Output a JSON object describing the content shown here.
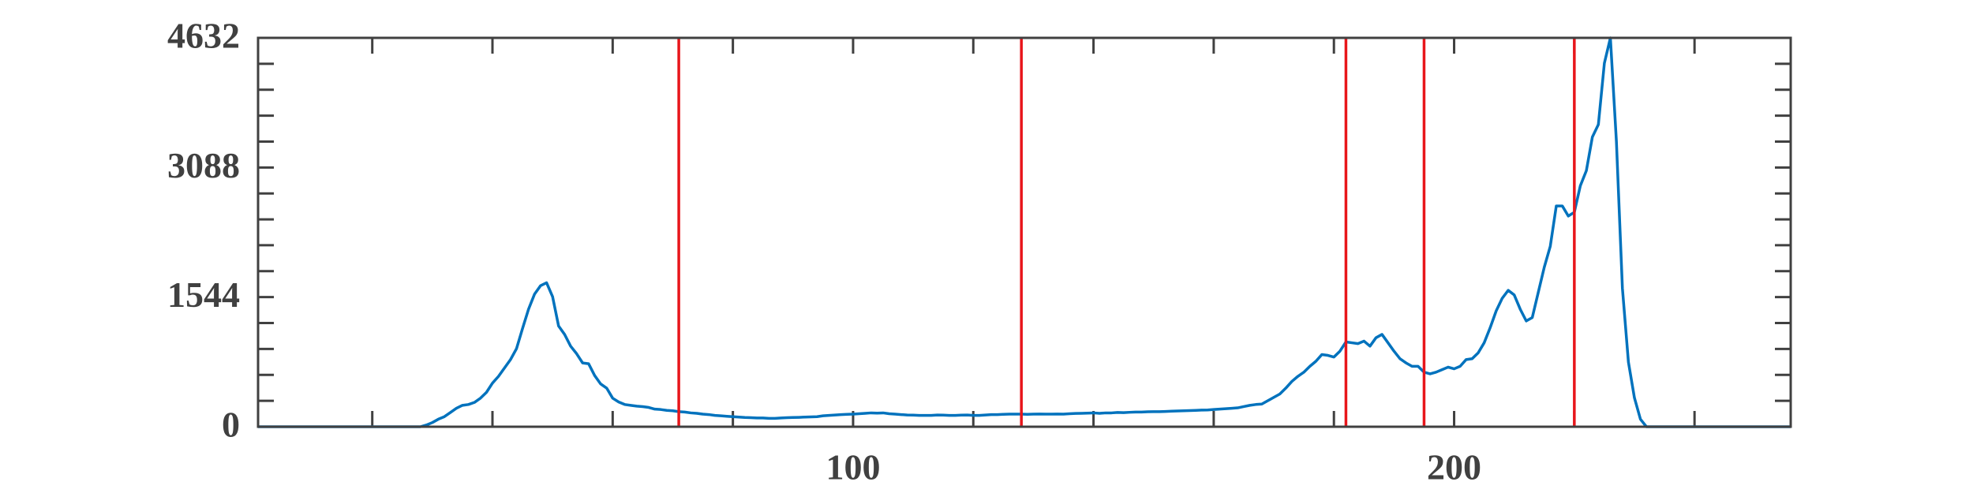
{
  "chart_data": {
    "type": "line",
    "x": [
      1,
      2,
      3,
      4,
      5,
      6,
      7,
      8,
      9,
      10,
      11,
      12,
      13,
      14,
      15,
      16,
      17,
      18,
      19,
      20,
      21,
      22,
      23,
      24,
      25,
      26,
      27,
      28,
      29,
      30,
      31,
      32,
      33,
      34,
      35,
      36,
      37,
      38,
      39,
      40,
      41,
      42,
      43,
      44,
      45,
      46,
      47,
      48,
      49,
      50,
      51,
      52,
      53,
      54,
      55,
      56,
      57,
      58,
      59,
      60,
      61,
      62,
      63,
      64,
      65,
      66,
      67,
      68,
      69,
      70,
      71,
      72,
      73,
      74,
      75,
      76,
      77,
      78,
      79,
      80,
      81,
      82,
      83,
      84,
      85,
      86,
      87,
      88,
      89,
      90,
      91,
      92,
      93,
      94,
      95,
      96,
      97,
      98,
      99,
      100,
      101,
      102,
      103,
      104,
      105,
      106,
      107,
      108,
      109,
      110,
      111,
      112,
      113,
      114,
      115,
      116,
      117,
      118,
      119,
      120,
      121,
      122,
      123,
      124,
      125,
      126,
      127,
      128,
      129,
      130,
      131,
      132,
      133,
      134,
      135,
      136,
      137,
      138,
      139,
      140,
      141,
      142,
      143,
      144,
      145,
      146,
      147,
      148,
      149,
      150,
      151,
      152,
      153,
      154,
      155,
      156,
      157,
      158,
      159,
      160,
      161,
      162,
      163,
      164,
      165,
      166,
      167,
      168,
      169,
      170,
      171,
      172,
      173,
      174,
      175,
      176,
      177,
      178,
      179,
      180,
      181,
      182,
      183,
      184,
      185,
      186,
      187,
      188,
      189,
      190,
      191,
      192,
      193,
      194,
      195,
      196,
      197,
      198,
      199,
      200,
      201,
      202,
      203,
      204,
      205,
      206,
      207,
      208,
      209,
      210,
      211,
      212,
      213,
      214,
      215,
      216,
      217,
      218,
      219,
      220,
      221,
      222,
      223,
      224,
      225,
      226,
      227,
      228,
      229,
      230,
      231,
      232,
      233,
      234,
      235,
      236,
      237,
      238,
      239,
      240,
      241,
      242,
      243,
      244,
      245,
      246,
      247,
      248,
      249,
      250,
      251,
      252,
      253,
      254,
      255,
      256
    ],
    "values": [
      0,
      0,
      0,
      0,
      0,
      0,
      0,
      0,
      0,
      0,
      0,
      0,
      0,
      0,
      0,
      0,
      0,
      0,
      0,
      0,
      0,
      0,
      0,
      0,
      0,
      0,
      0,
      0,
      20,
      50,
      90,
      120,
      170,
      220,
      255,
      265,
      290,
      340,
      410,
      520,
      600,
      700,
      800,
      930,
      1170,
      1400,
      1580,
      1680,
      1715,
      1550,
      1200,
      1100,
      960,
      870,
      760,
      750,
      610,
      510,
      460,
      340,
      295,
      265,
      255,
      245,
      240,
      230,
      210,
      205,
      195,
      190,
      180,
      175,
      165,
      160,
      150,
      145,
      135,
      130,
      125,
      120,
      115,
      110,
      108,
      105,
      105,
      100,
      100,
      105,
      108,
      110,
      112,
      115,
      118,
      120,
      130,
      135,
      140,
      145,
      148,
      150,
      155,
      160,
      165,
      162,
      165,
      155,
      150,
      145,
      140,
      138,
      135,
      135,
      135,
      140,
      138,
      135,
      135,
      138,
      140,
      135,
      135,
      140,
      145,
      145,
      148,
      150,
      150,
      150,
      148,
      150,
      152,
      150,
      150,
      152,
      150,
      155,
      158,
      160,
      162,
      165,
      160,
      165,
      165,
      170,
      168,
      172,
      175,
      175,
      178,
      180,
      180,
      182,
      185,
      188,
      190,
      192,
      195,
      198,
      200,
      205,
      210,
      215,
      220,
      225,
      240,
      255,
      265,
      270,
      310,
      350,
      390,
      460,
      540,
      600,
      650,
      720,
      780,
      860,
      850,
      830,
      900,
      1010,
      1000,
      990,
      1020,
      960,
      1060,
      1100,
      1000,
      900,
      810,
      760,
      720,
      720,
      650,
      630,
      650,
      680,
      710,
      690,
      720,
      800,
      810,
      880,
      1000,
      1180,
      1380,
      1530,
      1625,
      1570,
      1400,
      1260,
      1300,
      1600,
      1900,
      2150,
      2630,
      2630,
      2510,
      2555,
      2870,
      3050,
      3450,
      3600,
      4330,
      4632,
      3400,
      1650,
      770,
      345,
      90,
      0,
      0,
      0,
      0,
      0,
      0,
      0,
      0,
      0,
      0,
      0,
      0,
      0,
      0,
      0,
      0,
      0,
      0,
      0,
      0,
      0,
      0,
      0,
      0,
      0
    ],
    "color": "#0072bd",
    "xlim": [
      1,
      256
    ],
    "xticks": [
      100,
      200
    ],
    "x_minor_ticks": [
      20,
      40,
      60,
      80,
      120,
      140,
      160,
      180,
      220,
      240
    ],
    "ylim": [
      0,
      4632
    ],
    "yticks": [
      0,
      1544,
      3088,
      4632
    ],
    "y_minor_ticks": [
      308.8,
      617.6,
      926.4,
      1235.2,
      1852.8,
      2161.6,
      2470.4,
      2779.2,
      3396.8,
      3705.6,
      4014.4,
      4323.2
    ],
    "vlines": [
      71,
      128,
      182,
      195,
      220
    ],
    "vline_color": "#e8161b"
  }
}
